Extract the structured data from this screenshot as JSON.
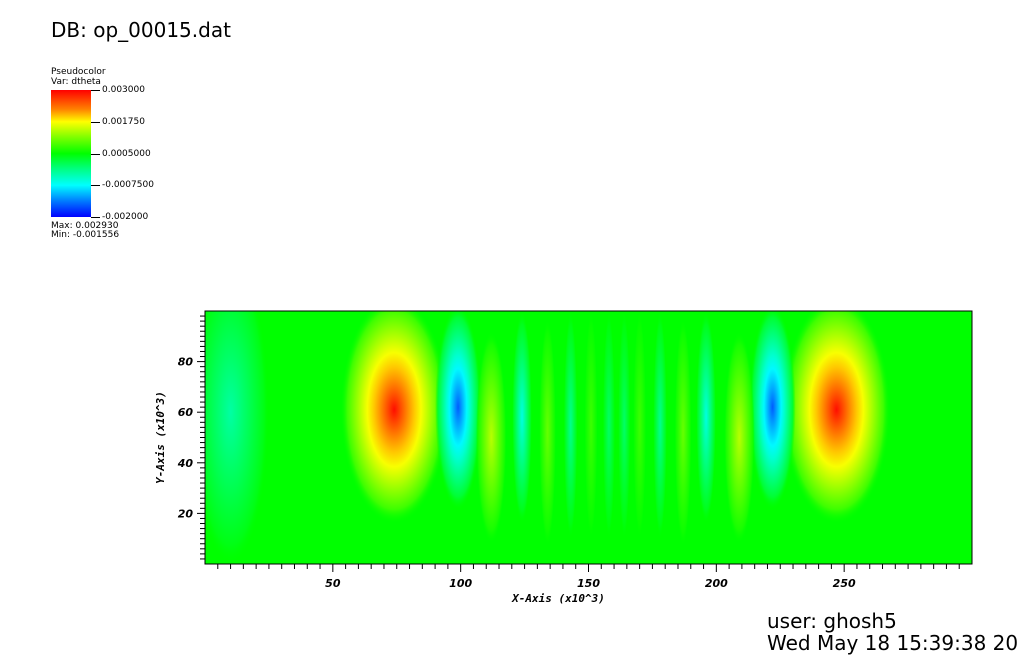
{
  "header": {
    "db_title": "DB: op_00015.dat"
  },
  "legend": {
    "plot_type": "Pseudocolor",
    "var_label": "Var: dtheta",
    "ticks": [
      "0.003000",
      "0.001750",
      "0.0005000",
      "-0.0007500",
      "-0.002000"
    ],
    "max_label": "Max:  0.002930",
    "min_label": "Min: -0.001556",
    "colors": [
      "#ff0000",
      "#ffff00",
      "#00ff00",
      "#00ffff",
      "#0000ff"
    ]
  },
  "footer": {
    "user": "user: ghosh5",
    "date": "Wed May 18 15:39:38 20"
  },
  "chart_data": {
    "type": "heatmap",
    "variable": "dtheta",
    "xlabel": "X-Axis (x10^3)",
    "ylabel": "Y-Axis (x10^3)",
    "xlim": [
      0,
      300
    ],
    "ylim": [
      0,
      100
    ],
    "xticks": [
      50,
      100,
      150,
      200,
      250
    ],
    "yticks": [
      20,
      40,
      60,
      80
    ],
    "color_range": [
      -0.002,
      0.003
    ],
    "background_value": 0.0005,
    "data_max": 0.00293,
    "data_min": -0.001556,
    "features": [
      {
        "x": 74,
        "y": 61,
        "value": 0.00293,
        "x_half_width": 14,
        "y_half_height": 30
      },
      {
        "x": 247,
        "y": 61,
        "value": 0.00293,
        "x_half_width": 14,
        "y_half_height": 30
      },
      {
        "x": 99,
        "y": 62,
        "value": -0.00155,
        "x_half_width": 6,
        "y_half_height": 27
      },
      {
        "x": 222,
        "y": 62,
        "value": -0.00155,
        "x_half_width": 6,
        "y_half_height": 27
      },
      {
        "x": 112,
        "y": 50,
        "value": 0.0014,
        "x_half_width": 4,
        "y_half_height": 28
      },
      {
        "x": 209,
        "y": 50,
        "value": 0.0014,
        "x_half_width": 4,
        "y_half_height": 28
      },
      {
        "x": 124,
        "y": 58,
        "value": -0.0006,
        "x_half_width": 2.6,
        "y_half_height": 28
      },
      {
        "x": 196,
        "y": 58,
        "value": -0.0006,
        "x_half_width": 2.6,
        "y_half_height": 28
      },
      {
        "x": 134,
        "y": 52,
        "value": 0.001,
        "x_half_width": 2.2,
        "y_half_height": 30
      },
      {
        "x": 187,
        "y": 52,
        "value": 0.001,
        "x_half_width": 2.2,
        "y_half_height": 30
      },
      {
        "x": 143,
        "y": 55,
        "value": -0.0002,
        "x_half_width": 1.8,
        "y_half_height": 30
      },
      {
        "x": 178,
        "y": 55,
        "value": -0.0002,
        "x_half_width": 1.8,
        "y_half_height": 30
      },
      {
        "x": 151,
        "y": 55,
        "value": 0.0008,
        "x_half_width": 1.7,
        "y_half_height": 30
      },
      {
        "x": 170,
        "y": 55,
        "value": 0.0008,
        "x_half_width": 1.7,
        "y_half_height": 30
      },
      {
        "x": 158,
        "y": 55,
        "value": 0.0,
        "x_half_width": 1.6,
        "y_half_height": 30
      },
      {
        "x": 164,
        "y": 55,
        "value": 0.0,
        "x_half_width": 1.6,
        "y_half_height": 30
      },
      {
        "x": 10,
        "y": 60,
        "value": -0.0003,
        "x_half_width": 10,
        "y_half_height": 40
      }
    ]
  }
}
